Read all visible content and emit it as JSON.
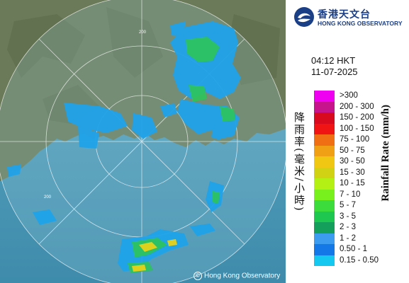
{
  "logo": {
    "name_cn": "香港天文台",
    "name_en": "HONG KONG OBSERVATORY"
  },
  "timestamp": {
    "time": "04:12 HKT",
    "date": "11-07-2025"
  },
  "axis": {
    "title_en": "Rainfall Rate (mm/h)",
    "title_cn": "降雨率(毫米/小時)"
  },
  "legend": [
    {
      "label": ">300",
      "color": "#f000f0"
    },
    {
      "label": "200 - 300",
      "color": "#c8148c"
    },
    {
      "label": "150 - 200",
      "color": "#d80a1e"
    },
    {
      "label": "100 - 150",
      "color": "#f01414"
    },
    {
      "label": "75 - 100",
      "color": "#f06e14"
    },
    {
      "label": "50 - 75",
      "color": "#f0a014"
    },
    {
      "label": "30 - 50",
      "color": "#f0c814"
    },
    {
      "label": "15 - 30",
      "color": "#d2d214"
    },
    {
      "label": "10 - 15",
      "color": "#b4f014"
    },
    {
      "label": "7 - 10",
      "color": "#78f01e"
    },
    {
      "label": "5 - 7",
      "color": "#3cdc3c"
    },
    {
      "label": "3 - 5",
      "color": "#1ec850"
    },
    {
      "label": "2 - 3",
      "color": "#14a05a"
    },
    {
      "label": "1 - 2",
      "color": "#3c9cf0"
    },
    {
      "label": "0.50 - 1",
      "color": "#1478e6"
    },
    {
      "label": "0.15 - 0.50",
      "color": "#14c8f0"
    }
  ],
  "map": {
    "range_rings": [
      "200",
      "200",
      "200"
    ],
    "copyright": "Hong Kong Observatory"
  },
  "colors": {
    "sea": "#5aa9c8",
    "land": "#6e7d5c",
    "brand": "#1b3f86"
  }
}
